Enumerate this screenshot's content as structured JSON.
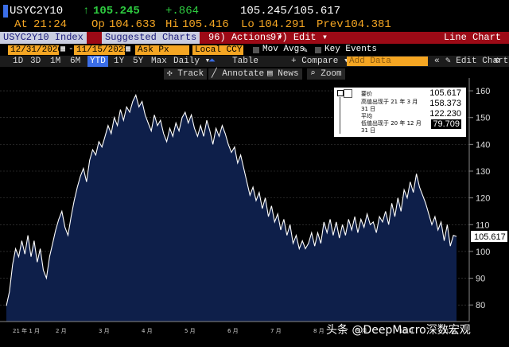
{
  "quote": {
    "ticker": "USYC2Y10",
    "arrow": "↑",
    "last": "105.245",
    "change": "+.864",
    "bid_ask": "105.245/105.617",
    "at_label": "At",
    "at_time": "21:24",
    "open_label": "Op",
    "open": "104.633",
    "high_label": "Hi",
    "high": "105.416",
    "low_label": "Lo",
    "low": "104.291",
    "prev_label": "Prev",
    "prev": "104.381"
  },
  "menubar": {
    "security": "USYC2Y10 Index",
    "suggested": "Suggested Charts",
    "actions_num": "96)",
    "actions": "Actions",
    "edit_num": "97)",
    "edit": "Edit",
    "view_title": "Line Chart"
  },
  "settings": {
    "start_date": "12/31/2020",
    "end_date": "11/15/2021",
    "field": "Ask Px",
    "currency": "Local CCY",
    "mov_avgs": "Mov Avgs",
    "key_events": "Key Events"
  },
  "toolbar": {
    "periods": [
      "1D",
      "3D",
      "1M",
      "6M",
      "YTD",
      "1Y",
      "5Y",
      "Max"
    ],
    "selected_period": "YTD",
    "frequency": "Daily",
    "table": "Table",
    "compare": "+ Compare",
    "add_data_placeholder": "Add Data",
    "edit_chart": "Edit Chart"
  },
  "tools": {
    "track": "Track",
    "annotate": "Annotate",
    "news": "News",
    "zoom": "Zoom"
  },
  "legend": {
    "ask_label": "要价",
    "ask_value": "105.617",
    "high_label_1": "高值出现于 21 年 3 月",
    "high_label_2": "31 日",
    "high_value": "158.373",
    "avg_label": "平均",
    "avg_value": "122.230",
    "low_label_1": "低值出现于 20 年 12 月",
    "low_label_2": "31 日",
    "low_value": "79.709"
  },
  "last_value_tag": "105.617",
  "watermark": "头条 @DeepMacro深数宏观",
  "colors": {
    "accent_blue": "#3b6ee8",
    "amber": "#f5a623",
    "menu_red": "#9c0a16",
    "area_fill": "#0e1f4a",
    "line": "#ffffff"
  },
  "chart_data": {
    "type": "area",
    "ylim": [
      75,
      163
    ],
    "yticks": [
      80,
      90,
      100,
      110,
      120,
      130,
      140,
      150,
      160
    ],
    "month_labels": [
      "21 年 1 月",
      "2 月",
      "3 月",
      "4 月",
      "5 月",
      "6 月",
      "7 月",
      "8 月",
      "9 月",
      "10 月",
      "11 月"
    ],
    "series": [
      {
        "values": [
          79.7,
          85,
          95,
          101,
          98,
          104,
          99,
          106,
          98,
          104,
          96,
          101,
          93,
          90,
          98,
          103,
          108,
          112,
          115,
          109,
          106,
          113,
          119,
          124,
          128,
          131,
          126,
          134,
          138,
          136,
          141,
          139,
          143,
          147,
          144,
          150,
          147,
          153,
          149,
          154,
          152,
          156,
          158.4,
          154,
          156,
          151,
          148,
          145,
          151,
          147,
          149,
          144,
          141,
          146,
          143,
          148,
          145,
          150,
          152,
          148,
          151,
          146,
          143,
          147,
          143,
          149,
          145,
          140,
          146,
          143,
          147,
          144,
          140,
          137,
          139,
          133,
          136,
          131,
          126,
          121,
          124,
          119,
          122,
          116,
          120,
          113,
          117,
          111,
          114,
          108,
          112,
          106,
          110,
          103,
          106,
          101,
          104,
          101,
          103,
          107,
          102,
          107,
          103,
          111,
          107,
          112,
          106,
          111,
          105,
          110,
          106,
          112,
          108,
          113,
          107,
          112,
          109,
          114,
          110,
          111,
          107,
          113,
          111,
          115,
          110,
          118,
          113,
          120,
          115,
          123,
          120,
          126,
          122,
          129,
          124,
          121,
          118,
          114,
          110,
          113,
          108,
          111,
          104,
          110,
          102,
          106,
          105.6
        ]
      }
    ]
  }
}
